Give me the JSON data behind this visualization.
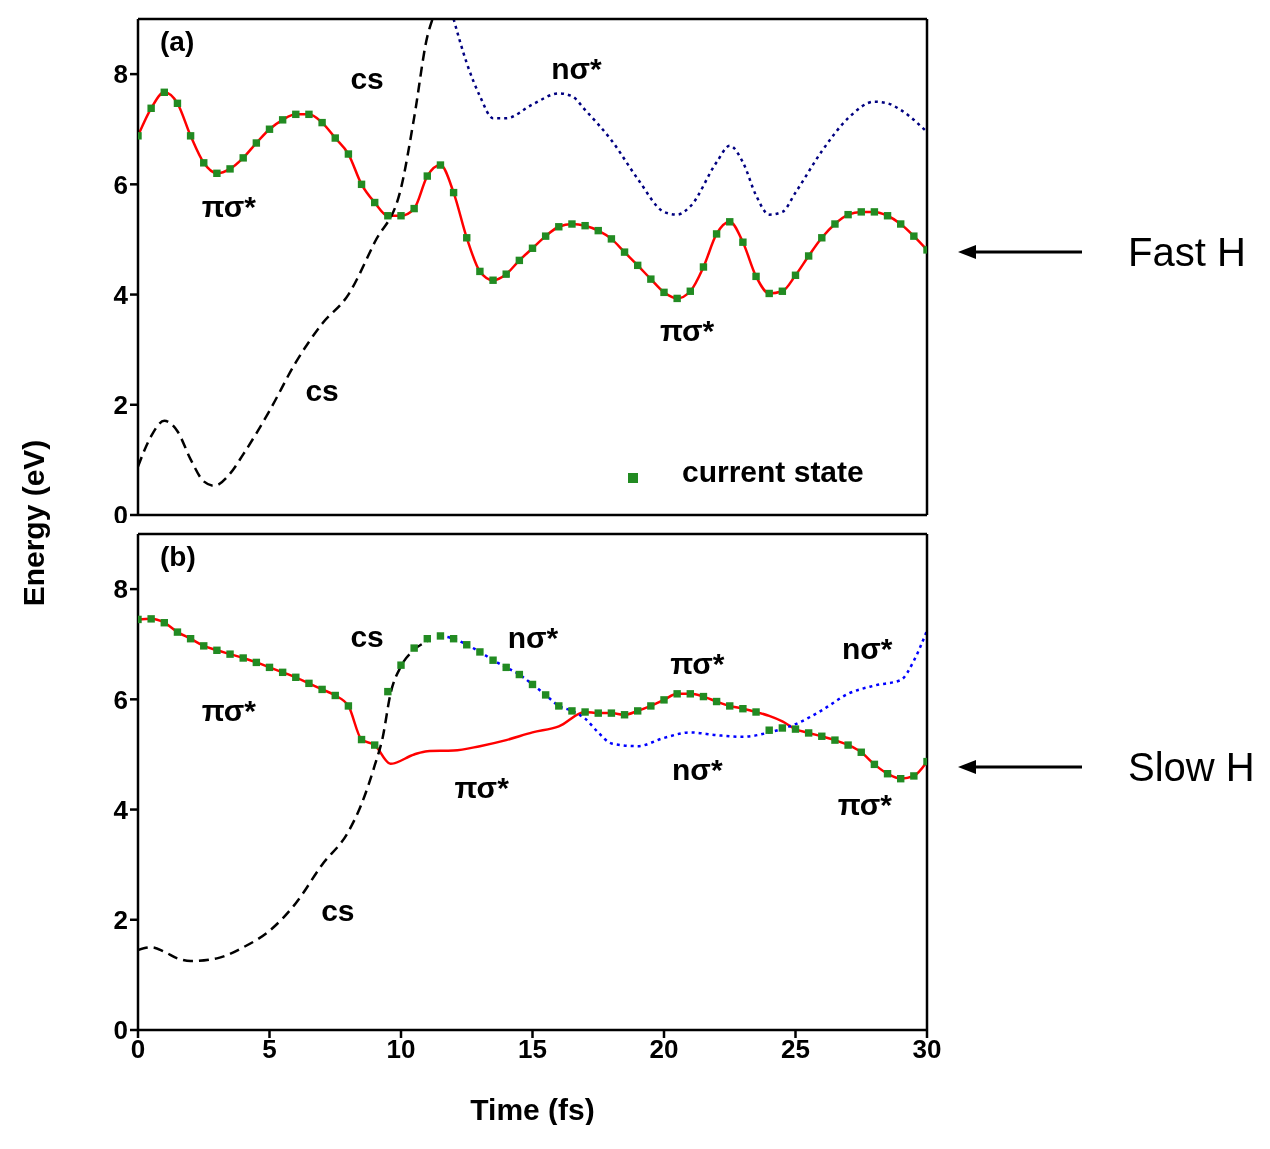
{
  "chart_data": [
    {
      "type": "line",
      "ylabel": "Energy (eV)",
      "xlim": [
        0,
        30
      ],
      "xticks": [
        0,
        5,
        10,
        15,
        20,
        25,
        30
      ],
      "ylim": [
        0,
        9
      ],
      "yticks": [
        0,
        2,
        4,
        6,
        8
      ],
      "tick_labels": "y",
      "legend": "bottom right",
      "annotations": [
        "(a)",
        "Fast H",
        "cs",
        "nσ*",
        "πσ*",
        "πσ*",
        "cs"
      ],
      "series": [
        {
          "color": "#ff0000",
          "line_style": "solid",
          "marker": "none",
          "x": [
            0,
            0.5,
            1,
            1.5,
            2,
            2.5,
            3,
            3.5,
            4,
            4.5,
            5,
            5.5,
            6,
            6.5,
            7,
            7.5,
            8,
            8.5,
            9,
            9.5,
            10,
            10.5,
            11,
            11.5,
            12,
            12.5,
            13,
            13.5,
            14,
            14.5,
            15,
            15.5,
            16,
            16.5,
            17,
            17.5,
            18,
            18.5,
            19,
            19.5,
            20,
            20.5,
            21,
            21.5,
            22,
            22.5,
            23,
            23.5,
            24,
            24.5,
            25,
            25.5,
            26,
            26.5,
            27,
            27.5,
            28,
            28.5,
            29,
            29.5,
            30
          ],
          "values": [
            6.88,
            7.38,
            7.67,
            7.47,
            6.88,
            6.39,
            6.2,
            6.28,
            6.48,
            6.75,
            7.0,
            7.17,
            7.27,
            7.27,
            7.12,
            6.84,
            6.55,
            6.0,
            5.67,
            5.43,
            5.43,
            5.56,
            6.15,
            6.35,
            5.85,
            5.03,
            4.42,
            4.26,
            4.37,
            4.62,
            4.84,
            5.06,
            5.23,
            5.28,
            5.25,
            5.16,
            5.01,
            4.77,
            4.53,
            4.28,
            4.04,
            3.93,
            4.06,
            4.5,
            5.1,
            5.32,
            4.95,
            4.33,
            4.02,
            4.06,
            4.35,
            4.7,
            5.03,
            5.28,
            5.45,
            5.5,
            5.5,
            5.43,
            5.28,
            5.06,
            4.81
          ]
        },
        {
          "color": "#000080",
          "line_style": "dotted",
          "marker": "none",
          "x": [
            12,
            12.5,
            13,
            13.5,
            14,
            15,
            16,
            16.5,
            17,
            18,
            19,
            20,
            20.5,
            21,
            22,
            22.5,
            23,
            23.5,
            24,
            24.5,
            25,
            26,
            27,
            28,
            28.5,
            29,
            30
          ],
          "values": [
            9.0,
            8.2,
            7.6,
            7.2,
            7.2,
            7.45,
            7.65,
            7.6,
            7.35,
            6.8,
            6.1,
            5.5,
            5.45,
            5.6,
            6.4,
            6.7,
            6.4,
            5.8,
            5.45,
            5.5,
            5.85,
            6.6,
            7.2,
            7.5,
            7.47,
            7.35,
            6.95
          ]
        },
        {
          "color": "#000000",
          "line_style": "dashed",
          "marker": "none",
          "x": [
            0,
            0.5,
            1,
            1.5,
            2,
            2.5,
            2.9,
            3.5,
            4,
            5,
            6,
            7,
            8,
            9,
            10,
            10.5,
            11,
            11.2
          ],
          "values": [
            0.88,
            1.43,
            1.71,
            1.52,
            1.01,
            0.61,
            0.53,
            0.75,
            1.1,
            1.89,
            2.77,
            3.47,
            4.0,
            4.95,
            5.93,
            7.21,
            8.68,
            9.0
          ]
        },
        {
          "type": "scatter",
          "name": "current state",
          "color": "#228b22",
          "marker": "square",
          "x": [
            0,
            0.5,
            1,
            1.5,
            2,
            2.5,
            3,
            3.5,
            4,
            4.5,
            5,
            5.5,
            6,
            6.5,
            7,
            7.5,
            8,
            8.5,
            9,
            9.5,
            10,
            10.5,
            11,
            11.5,
            12,
            12.5,
            13,
            13.5,
            14,
            14.5,
            15,
            15.5,
            16,
            16.5,
            17,
            17.5,
            18,
            18.5,
            19,
            19.5,
            20,
            20.5,
            21,
            21.5,
            22,
            22.5,
            23,
            23.5,
            24,
            24.5,
            25,
            25.5,
            26,
            26.5,
            27,
            27.5,
            28,
            28.5,
            29,
            29.5,
            30
          ],
          "values": [
            6.88,
            7.38,
            7.67,
            7.47,
            6.88,
            6.39,
            6.2,
            6.28,
            6.48,
            6.75,
            7.0,
            7.17,
            7.27,
            7.27,
            7.12,
            6.84,
            6.55,
            6.0,
            5.67,
            5.43,
            5.43,
            5.56,
            6.15,
            6.35,
            5.85,
            5.03,
            4.42,
            4.26,
            4.37,
            4.62,
            4.84,
            5.06,
            5.23,
            5.28,
            5.25,
            5.16,
            5.01,
            4.77,
            4.53,
            4.28,
            4.04,
            3.93,
            4.06,
            4.5,
            5.1,
            5.32,
            4.95,
            4.33,
            4.02,
            4.06,
            4.35,
            4.7,
            5.03,
            5.28,
            5.45,
            5.5,
            5.5,
            5.43,
            5.28,
            5.06,
            4.81
          ]
        }
      ]
    },
    {
      "type": "line",
      "xlabel": "Time (fs)",
      "xlim": [
        0,
        30
      ],
      "xticks": [
        0,
        5,
        10,
        15,
        20,
        25,
        30
      ],
      "ylim": [
        0,
        9
      ],
      "yticks": [
        0,
        2,
        4,
        6,
        8
      ],
      "annotations": [
        "(b)",
        "Slow H",
        "cs",
        "nσ*",
        "πσ*",
        "πσ*",
        "πσ*",
        "nσ*",
        "nσ*",
        "πσ*",
        "cs"
      ],
      "series": [
        {
          "color": "#ff0000",
          "line_style": "solid",
          "marker": "none",
          "x": [
            0,
            0.5,
            1,
            1.5,
            2,
            2.5,
            3,
            3.5,
            4,
            4.5,
            5,
            5.5,
            6,
            6.5,
            7,
            7.5,
            8,
            8.5,
            9,
            9.6,
            10.5,
            11,
            12,
            13,
            14,
            15,
            16,
            17,
            17.5,
            18,
            18.5,
            19,
            19.5,
            20,
            20.5,
            21,
            21.5,
            22,
            22.5,
            23,
            23.5,
            24,
            24.5,
            25,
            25.5,
            26,
            26.5,
            27,
            27.5,
            28,
            28.5,
            29,
            29.5,
            30
          ],
          "values": [
            7.45,
            7.46,
            7.39,
            7.22,
            7.1,
            6.97,
            6.89,
            6.82,
            6.75,
            6.67,
            6.58,
            6.49,
            6.4,
            6.29,
            6.18,
            6.07,
            5.88,
            5.27,
            5.17,
            4.83,
            5.0,
            5.06,
            5.07,
            5.15,
            5.26,
            5.4,
            5.51,
            5.77,
            5.75,
            5.75,
            5.72,
            5.79,
            5.88,
            5.99,
            6.1,
            6.1,
            6.05,
            5.96,
            5.88,
            5.83,
            5.77,
            5.7,
            5.6,
            5.46,
            5.39,
            5.33,
            5.26,
            5.17,
            5.04,
            4.82,
            4.65,
            4.56,
            4.61,
            4.87
          ]
        },
        {
          "color": "#0000ff",
          "line_style": "dotted",
          "marker": "none",
          "x": [
            11.5,
            12,
            12.5,
            13,
            13.5,
            14,
            14.5,
            15,
            15.5,
            16,
            16.5,
            17,
            17.5,
            18,
            19,
            20,
            21,
            22,
            23,
            24,
            25,
            26,
            27,
            28,
            29,
            29.5,
            30
          ],
          "values": [
            7.15,
            7.1,
            6.99,
            6.86,
            6.71,
            6.58,
            6.45,
            6.27,
            6.08,
            5.88,
            5.79,
            5.65,
            5.4,
            5.2,
            5.15,
            5.3,
            5.4,
            5.35,
            5.32,
            5.4,
            5.55,
            5.8,
            6.1,
            6.25,
            6.35,
            6.7,
            7.25
          ]
        },
        {
          "color": "#000000",
          "line_style": "dashed",
          "marker": "none",
          "x": [
            0,
            0.5,
            1,
            1.5,
            2,
            3,
            4,
            5,
            6,
            7,
            8,
            8.5,
            9,
            9.3,
            9.6,
            10,
            10.5,
            11
          ],
          "values": [
            1.45,
            1.5,
            1.42,
            1.3,
            1.25,
            1.3,
            1.5,
            1.8,
            2.3,
            3.0,
            3.6,
            4.1,
            4.8,
            5.3,
            6.1,
            6.6,
            6.9,
            7.05
          ]
        },
        {
          "type": "scatter",
          "color": "#228b22",
          "marker": "square",
          "x": [
            0,
            0.5,
            1,
            1.5,
            2,
            2.5,
            3,
            3.5,
            4,
            4.5,
            5,
            5.5,
            6,
            6.5,
            7,
            7.5,
            8,
            8.5,
            9,
            9.5,
            10,
            10.5,
            11,
            11.5,
            12,
            12.5,
            13,
            13.5,
            14,
            14.5,
            15,
            15.5,
            16,
            16.5,
            17,
            17.5,
            18,
            18.5,
            19,
            19.5,
            20,
            20.5,
            21,
            21.5,
            22,
            22.5,
            23,
            23.5,
            24,
            24.5,
            25,
            25.5,
            26,
            26.5,
            27,
            27.5,
            28,
            28.5,
            29,
            29.5,
            30
          ],
          "values": [
            7.45,
            7.46,
            7.39,
            7.22,
            7.1,
            6.97,
            6.89,
            6.82,
            6.75,
            6.67,
            6.58,
            6.49,
            6.4,
            6.29,
            6.18,
            6.07,
            5.88,
            5.27,
            5.17,
            6.14,
            6.62,
            6.93,
            7.1,
            7.15,
            7.1,
            6.99,
            6.86,
            6.71,
            6.58,
            6.45,
            6.27,
            6.08,
            5.88,
            5.79,
            5.77,
            5.75,
            5.75,
            5.72,
            5.79,
            5.88,
            5.99,
            6.1,
            6.1,
            6.05,
            5.96,
            5.88,
            5.83,
            5.77,
            5.44,
            5.48,
            5.46,
            5.39,
            5.33,
            5.26,
            5.17,
            5.04,
            4.82,
            4.65,
            4.56,
            4.61,
            4.87
          ]
        }
      ]
    }
  ]
}
